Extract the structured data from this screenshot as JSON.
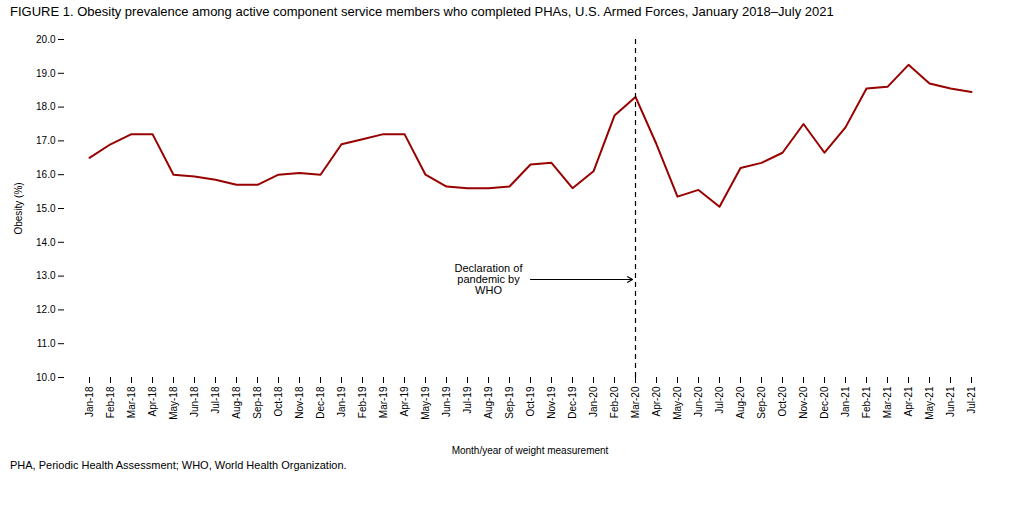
{
  "chart_data": {
    "type": "line",
    "title": "FIGURE 1. Obesity prevalence among active component service members who completed PHAs, U.S. Armed Forces, January 2018–July 2021",
    "xlabel": "Month/year of weight measurement",
    "ylabel": "Obesity (%)",
    "caption": "PHA, Periodic Health Assessment; WHO, World Health Organization.",
    "categories": [
      "Jan-18",
      "Feb-18",
      "Mar-18",
      "Apr-18",
      "May-18",
      "Jun-18",
      "Jul-18",
      "Aug-18",
      "Sep-18",
      "Oct-18",
      "Nov-18",
      "Dec-18",
      "Jan-19",
      "Feb-19",
      "Mar-19",
      "Apr-19",
      "May-19",
      "Jun-19",
      "Jul-19",
      "Aug-19",
      "Sep-19",
      "Oct-19",
      "Nov-19",
      "Dec-19",
      "Jan-20",
      "Feb-20",
      "Mar-20",
      "Apr-20",
      "May-20",
      "Jun-20",
      "Jul-20",
      "Aug-20",
      "Sep-20",
      "Oct-20",
      "Nov-20",
      "Dec-20",
      "Jan-21",
      "Feb-21",
      "Mar-21",
      "Apr-21",
      "May-21",
      "Jun-21",
      "Jul-21"
    ],
    "values": [
      16.5,
      16.9,
      17.2,
      17.2,
      16.0,
      15.95,
      15.85,
      15.7,
      15.7,
      16.0,
      16.05,
      16.0,
      16.9,
      17.05,
      17.2,
      17.2,
      16.0,
      15.65,
      15.6,
      15.6,
      15.65,
      16.3,
      16.35,
      15.6,
      16.1,
      17.75,
      18.3,
      16.9,
      15.35,
      15.55,
      15.05,
      16.2,
      16.35,
      16.65,
      17.5,
      16.65,
      17.4,
      18.55,
      18.6,
      19.25,
      18.7,
      18.55,
      18.45
    ],
    "color": "#990000",
    "ylim": [
      10.0,
      20.0
    ],
    "yticks": [
      {
        "value": 10.0,
        "label": "10.0"
      },
      {
        "value": 11.0,
        "label": "11.0"
      },
      {
        "value": 12.0,
        "label": "12.0"
      },
      {
        "value": 13.0,
        "label": "13.0"
      },
      {
        "value": 14.0,
        "label": "14.0"
      },
      {
        "value": 15.0,
        "label": "15.0"
      },
      {
        "value": 16.0,
        "label": "16.0"
      },
      {
        "value": 17.0,
        "label": "17.0"
      },
      {
        "value": 18.0,
        "label": "18.0"
      },
      {
        "value": 19.0,
        "label": "19.0"
      },
      {
        "value": 20.0,
        "label": "20.0"
      }
    ],
    "grid": false,
    "annotations": [
      {
        "text": "Declaration of\npandemic by\nWHO",
        "x": "Mar-20",
        "y": 12.9,
        "line_style": "dashed"
      }
    ]
  }
}
